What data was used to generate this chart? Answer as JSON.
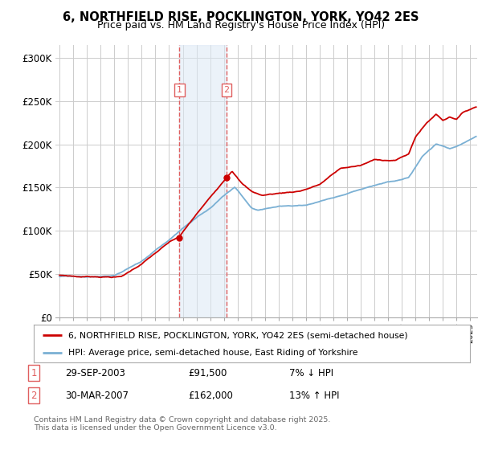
{
  "title_line1": "6, NORTHFIELD RISE, POCKLINGTON, YORK, YO42 2ES",
  "title_line2": "Price paid vs. HM Land Registry's House Price Index (HPI)",
  "ylabel_ticks": [
    "£0",
    "£50K",
    "£100K",
    "£150K",
    "£200K",
    "£250K",
    "£300K"
  ],
  "ytick_values": [
    0,
    50000,
    100000,
    150000,
    200000,
    250000,
    300000
  ],
  "ylim": [
    0,
    315000
  ],
  "xlim_start": 1994.7,
  "xlim_end": 2025.5,
  "purchase1": {
    "date_num": 2003.75,
    "price": 91500,
    "label": "1"
  },
  "purchase2": {
    "date_num": 2007.2,
    "price": 162000,
    "label": "2"
  },
  "highlight_color": "#dce9f5",
  "highlight_alpha": 0.55,
  "dashed_line_color": "#e06060",
  "property_line_color": "#cc0000",
  "hpi_line_color": "#7ab0d4",
  "background_color": "#ffffff",
  "grid_color": "#cccccc",
  "legend_label_property": "6, NORTHFIELD RISE, POCKLINGTON, YORK, YO42 2ES (semi-detached house)",
  "legend_label_hpi": "HPI: Average price, semi-detached house, East Riding of Yorkshire",
  "footer_text": "Contains HM Land Registry data © Crown copyright and database right 2025.\nThis data is licensed under the Open Government Licence v3.0.",
  "table_entries": [
    {
      "num": "1",
      "date": "29-SEP-2003",
      "amount": "£91,500",
      "hpi_diff": "7% ↓ HPI"
    },
    {
      "num": "2",
      "date": "30-MAR-2007",
      "amount": "£162,000",
      "hpi_diff": "13% ↑ HPI"
    }
  ]
}
